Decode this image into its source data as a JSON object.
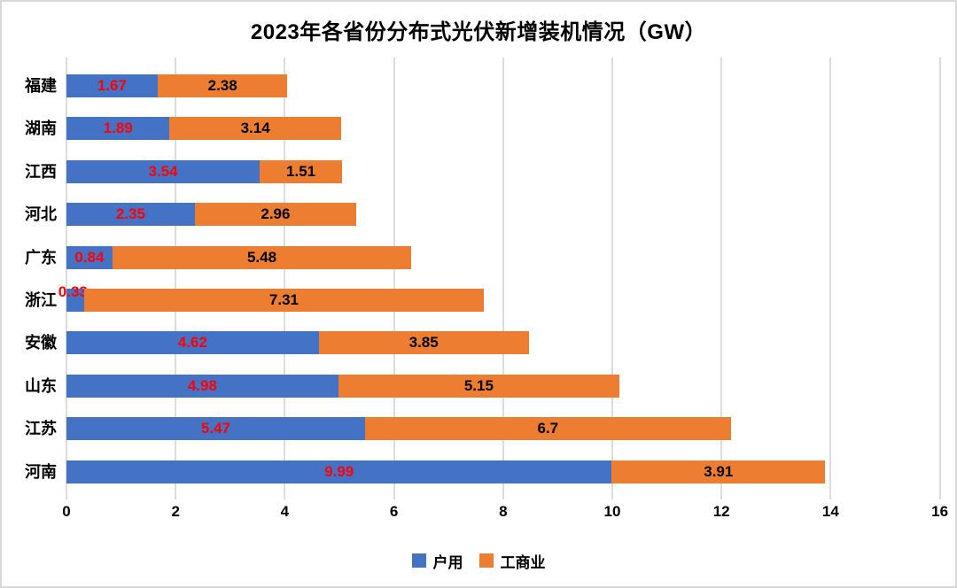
{
  "chart_data": {
    "type": "bar",
    "orientation": "horizontal",
    "stacked": true,
    "title": "2023年各省份分布式光伏新增装机情况（GW）",
    "categories": [
      "福建",
      "湖南",
      "江西",
      "河北",
      "广东",
      "浙江",
      "安徽",
      "山东",
      "江苏",
      "河南"
    ],
    "series": [
      {
        "name": "户用",
        "color": "#4472C4",
        "label_color": "#FF0000",
        "values": [
          1.67,
          1.89,
          3.54,
          2.35,
          0.84,
          0.33,
          4.62,
          4.98,
          5.47,
          9.99
        ]
      },
      {
        "name": "工商业",
        "color": "#ED7D31",
        "label_color": "#000000",
        "values": [
          2.38,
          3.14,
          1.51,
          2.96,
          5.48,
          7.31,
          3.85,
          5.15,
          6.7,
          3.91
        ]
      }
    ],
    "x_axis": {
      "min": 0,
      "max": 16,
      "tick_step": 2,
      "ticks": [
        0,
        2,
        4,
        6,
        8,
        10,
        12,
        14,
        16
      ]
    },
    "legend": [
      {
        "label": "户用",
        "color": "#4472C4"
      },
      {
        "label": "工商业",
        "color": "#ED7D31"
      }
    ],
    "grid": true,
    "styles": {
      "gridline_color": "#dcdcdc",
      "frame_border_color": "#d9d9d9",
      "background": "#ffffff"
    }
  }
}
